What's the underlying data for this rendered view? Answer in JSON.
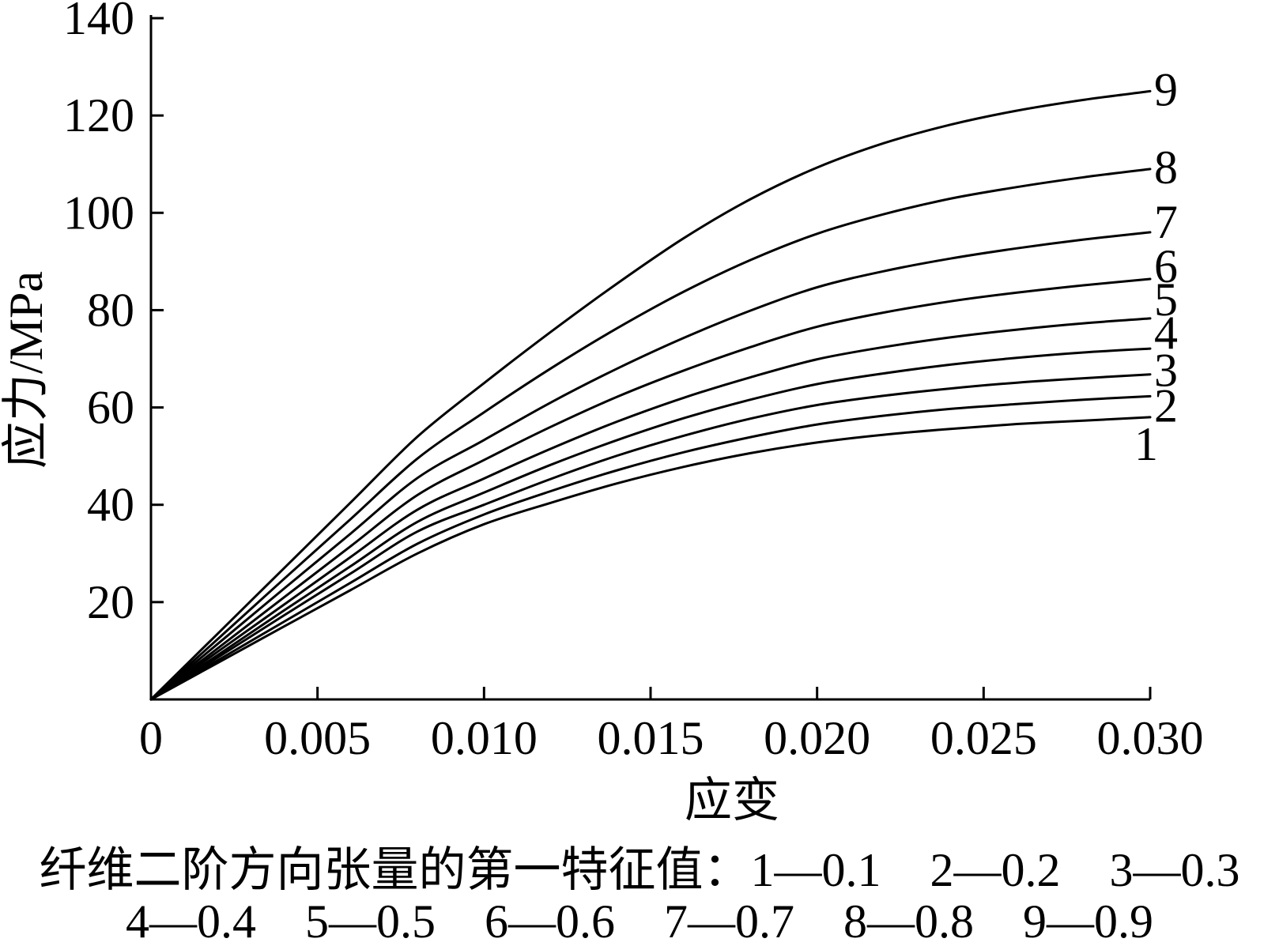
{
  "chart_data": {
    "type": "line",
    "xlabel": "应变",
    "ylabel": "应力/MPa",
    "xlim": [
      0,
      0.03
    ],
    "ylim": [
      0,
      140
    ],
    "x_ticks": [
      0,
      0.005,
      0.01,
      0.015,
      0.02,
      0.025,
      0.03
    ],
    "x_tick_labels": [
      "0",
      "0.005",
      "0.010",
      "0.015",
      "0.020",
      "0.025",
      "0.030"
    ],
    "y_ticks": [
      20,
      40,
      60,
      80,
      100,
      120,
      140
    ],
    "y_tick_labels": [
      "20",
      "40",
      "60",
      "80",
      "100",
      "120",
      "140"
    ],
    "grid": false,
    "line_color": "#000000",
    "background_color": "#ffffff",
    "x": [
      0,
      0.002,
      0.004,
      0.006,
      0.008,
      0.01,
      0.012,
      0.014,
      0.016,
      0.018,
      0.02,
      0.022,
      0.024,
      0.026,
      0.028,
      0.03
    ],
    "series": [
      {
        "name": "1",
        "values": [
          0,
          7.5,
          15,
          22.5,
          30,
          36,
          40.4,
          44.4,
          47.8,
          50.6,
          52.8,
          54.4,
          55.6,
          56.6,
          57.3,
          58.0
        ]
      },
      {
        "name": "2",
        "values": [
          0,
          8,
          16,
          24,
          32,
          38,
          42.8,
          47.1,
          50.8,
          53.9,
          56.5,
          58.3,
          59.7,
          60.7,
          61.6,
          62.3
        ]
      },
      {
        "name": "3",
        "values": [
          0,
          8.6,
          17.3,
          25.9,
          34.5,
          40,
          45.3,
          50.1,
          54.2,
          57.7,
          60.5,
          62.4,
          63.9,
          65.1,
          66.0,
          66.8
        ]
      },
      {
        "name": "4",
        "values": [
          0,
          9.1,
          18.3,
          27.4,
          36.5,
          42.5,
          48.2,
          53.3,
          57.8,
          61.6,
          64.8,
          67.0,
          68.8,
          70.2,
          71.3,
          72.1
        ]
      },
      {
        "name": "5",
        "values": [
          0,
          9.8,
          19.5,
          29.3,
          39,
          45.4,
          51.5,
          57.1,
          62.0,
          66.2,
          69.9,
          72.4,
          74.4,
          76.0,
          77.3,
          78.3
        ]
      },
      {
        "name": "6",
        "values": [
          0,
          10.5,
          21,
          31.5,
          42,
          49.2,
          56.0,
          62.2,
          67.6,
          72.4,
          76.6,
          79.5,
          81.8,
          83.6,
          85.1,
          86.4
        ]
      },
      {
        "name": "7",
        "values": [
          0,
          11.4,
          22.8,
          34.1,
          45.5,
          53.3,
          61.0,
          68.0,
          74.3,
          79.9,
          84.7,
          88.0,
          90.6,
          92.7,
          94.5,
          96.0
        ]
      },
      {
        "name": "8",
        "values": [
          0,
          12.4,
          24.8,
          37.1,
          49.5,
          59,
          68.0,
          76.3,
          83.8,
          90.3,
          95.7,
          99.7,
          102.9,
          105.3,
          107.3,
          109.0
        ]
      },
      {
        "name": "9",
        "values": [
          0,
          13.5,
          27,
          40.5,
          54,
          65,
          75.5,
          85.5,
          94.8,
          102.8,
          109.3,
          114.3,
          118.1,
          121.0,
          123.2,
          125.0
        ]
      }
    ],
    "legend": {
      "placement": "bottom",
      "title": "纤维二阶方向张量的第一特征值：",
      "entries": [
        "1—0.1",
        "2—0.2",
        "3—0.3",
        "4—0.4",
        "5—0.5",
        "6—0.6",
        "7—0.7",
        "8—0.8",
        "9—0.9"
      ]
    }
  }
}
